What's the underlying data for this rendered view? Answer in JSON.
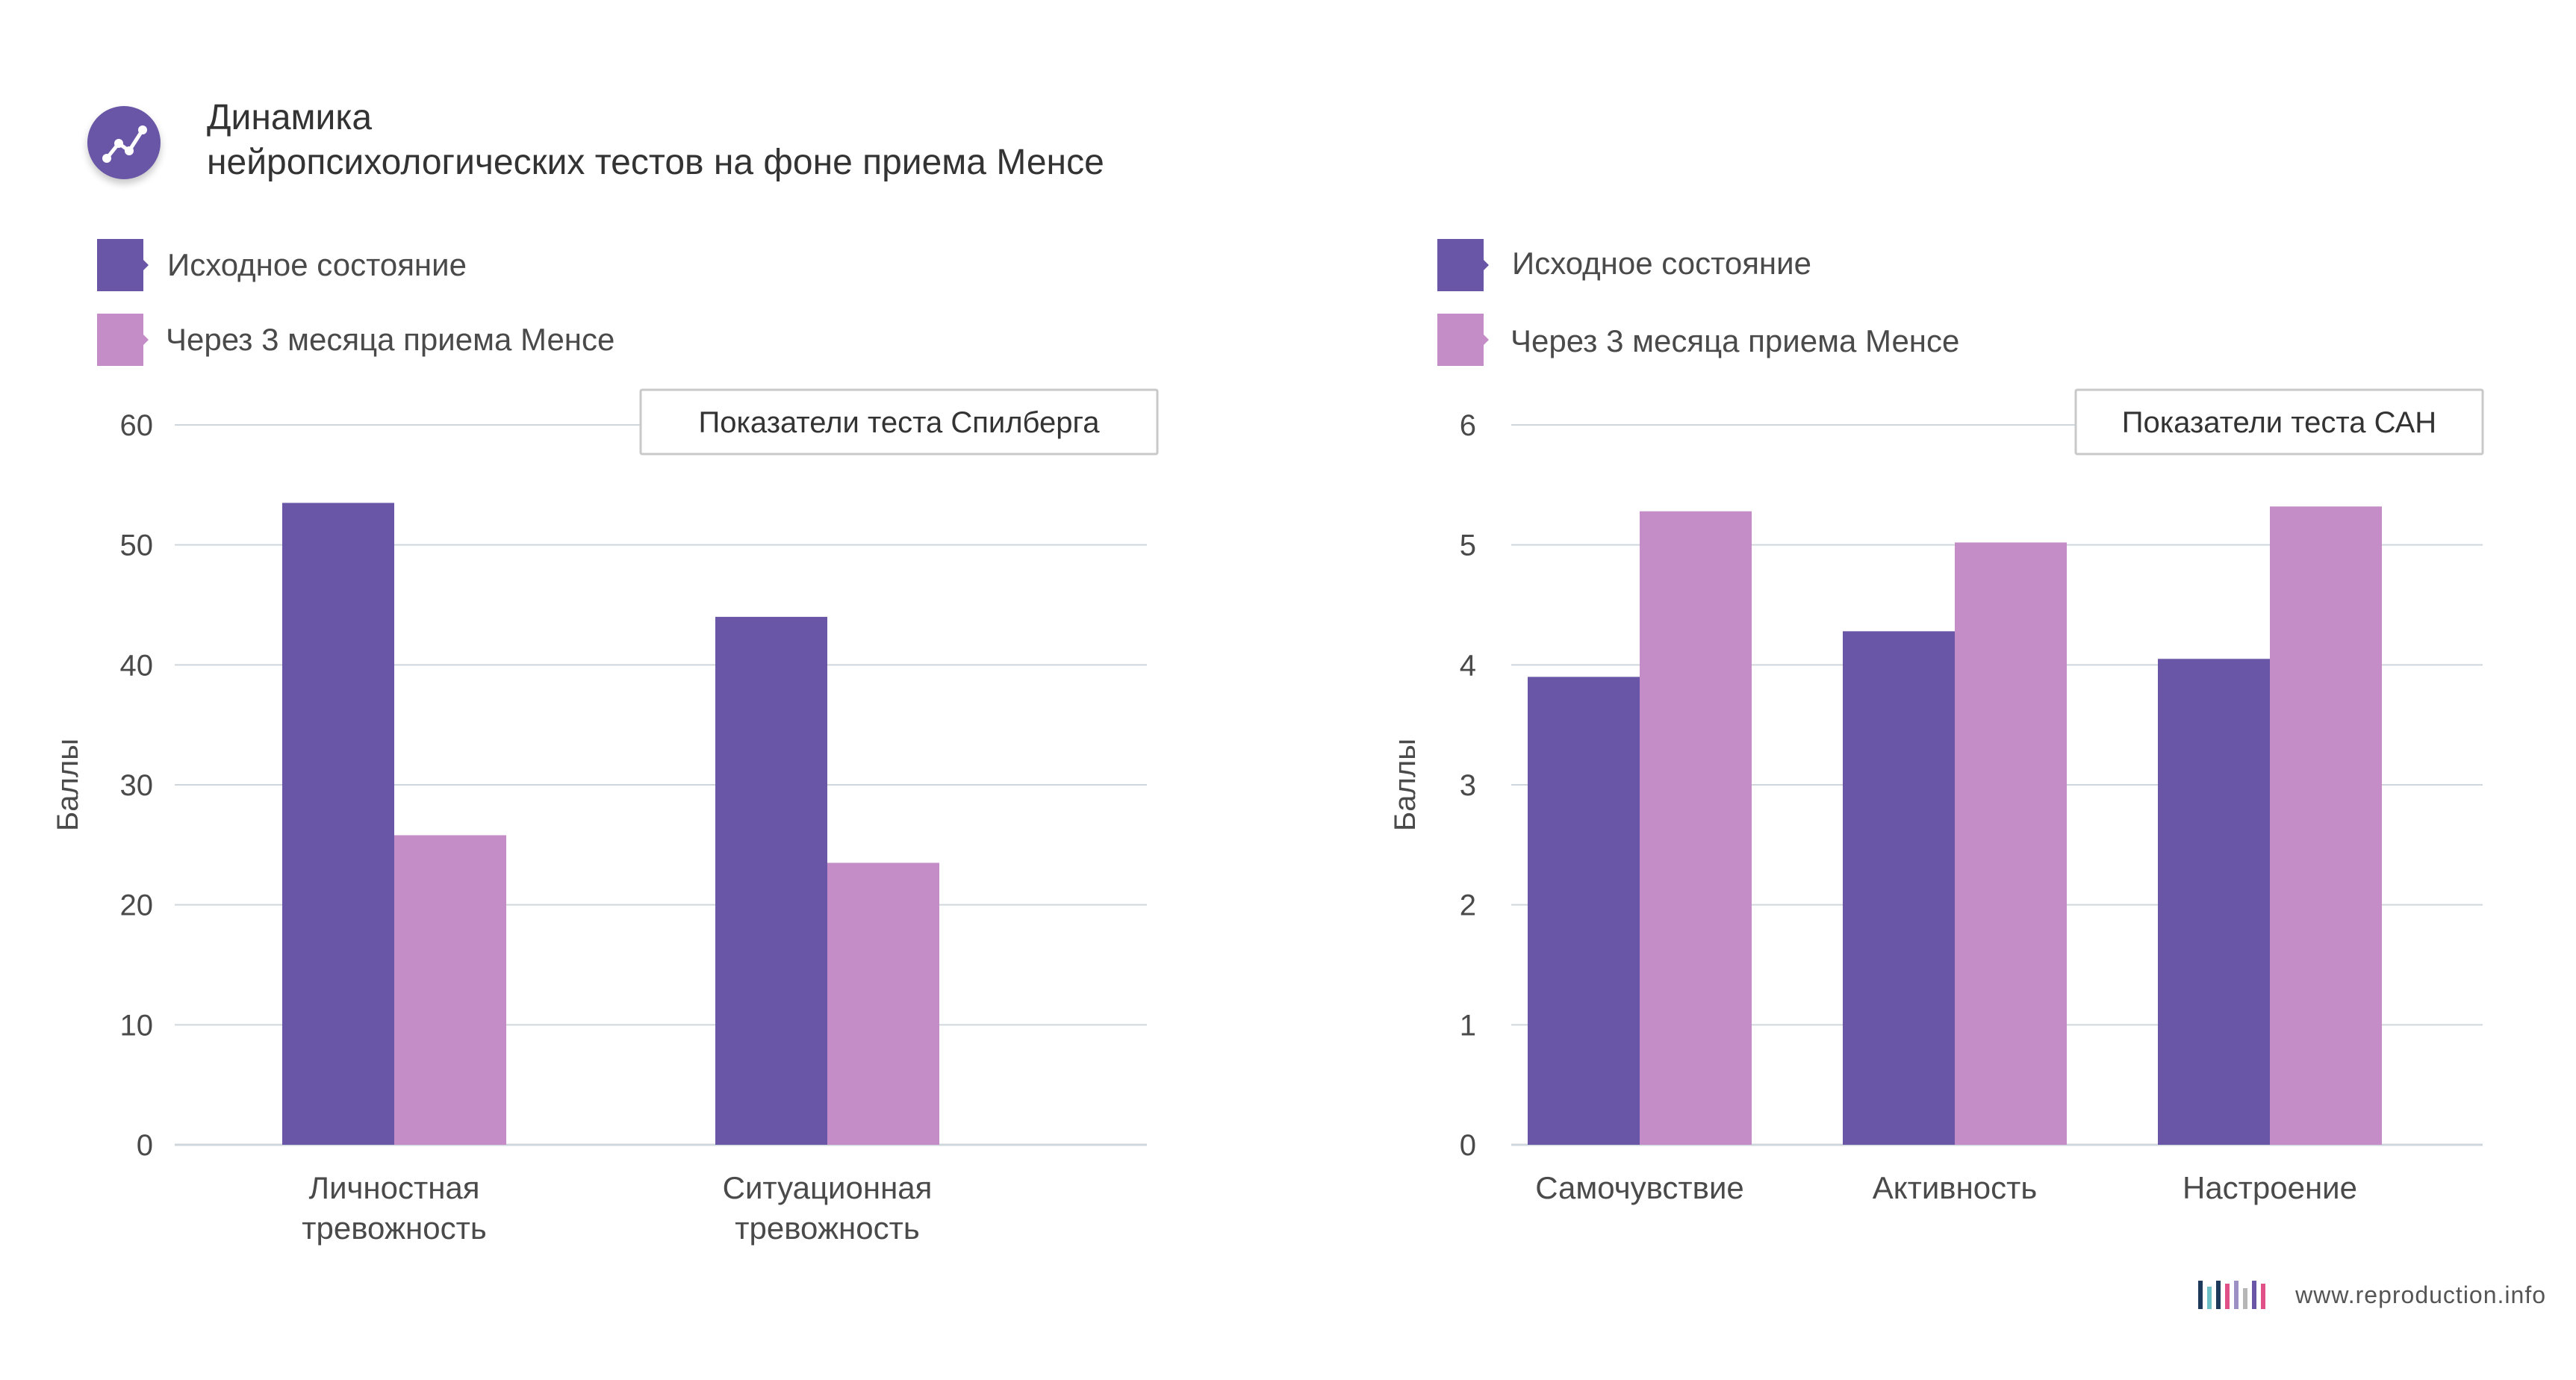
{
  "header": {
    "icon": "trend-line-icon",
    "title_line1": "Динамика",
    "title_line2": "нейропсихологических тестов на фоне приема Менсе"
  },
  "colors": {
    "baseline": "#6956a6",
    "after": "#c48dc8",
    "grid": "#cfd6dc",
    "text": "#444444"
  },
  "legends": [
    {
      "items": [
        {
          "label": "Исходное состояние",
          "color": "#6956a6"
        },
        {
          "label": "Через 3 месяца приема Менсе",
          "color": "#c48dc8"
        }
      ]
    },
    {
      "items": [
        {
          "label": "Исходное состояние",
          "color": "#6956a6"
        },
        {
          "label": "Через 3 месяца приема Менсе",
          "color": "#c48dc8"
        }
      ]
    }
  ],
  "chart_data": [
    {
      "type": "bar",
      "title": "Показатели теста Спилберга",
      "ylabel": "Баллы",
      "xlabel": "",
      "ylim": [
        0,
        60
      ],
      "yticks": [
        "0",
        "10",
        "20",
        "30",
        "40",
        "50",
        "60"
      ],
      "categories": [
        [
          "Личностная",
          "тревожность"
        ],
        [
          "Ситуационная",
          "тревожность"
        ]
      ],
      "series": [
        {
          "name": "Исходное состояние",
          "values": [
            53.5,
            44.0
          ]
        },
        {
          "name": "Через 3 месяца приема Менсе",
          "values": [
            25.8,
            23.5
          ]
        }
      ],
      "grid": true,
      "legend": "top-left"
    },
    {
      "type": "bar",
      "title": "Показатели теста САН",
      "ylabel": "Баллы",
      "xlabel": "",
      "ylim": [
        0,
        6
      ],
      "yticks": [
        "0",
        "1",
        "2",
        "3",
        "4",
        "5",
        "6"
      ],
      "categories": [
        [
          "Самочувствие"
        ],
        [
          "Активность"
        ],
        [
          "Настроение"
        ]
      ],
      "series": [
        {
          "name": "Исходное состояние",
          "values": [
            3.9,
            4.28,
            4.05
          ]
        },
        {
          "name": "Через 3 месяца приема Менсе",
          "values": [
            5.28,
            5.02,
            5.32
          ]
        }
      ],
      "grid": true,
      "legend": "top-left"
    }
  ],
  "footer": {
    "brand": "www.reproduction.info",
    "brand_bar_colors": [
      "#1d3a5c",
      "#6ec1c9",
      "#1d3a5c",
      "#e0518a",
      "#9b8fc4",
      "#b7b7b7",
      "#6956a6",
      "#e0518a"
    ]
  }
}
